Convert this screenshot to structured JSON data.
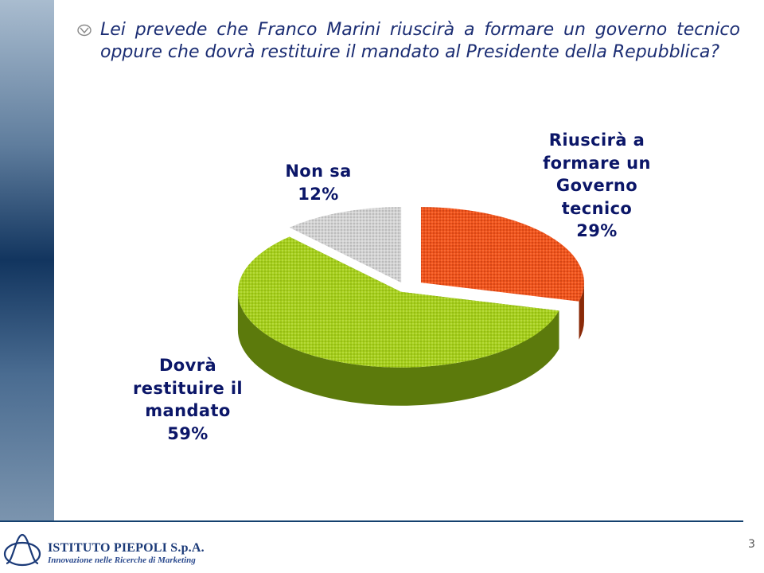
{
  "question": {
    "text": "Lei prevede che Franco Marini riuscirà a formare un governo tecnico oppure che dovrà restituire il mandato al Presidente della Repubblica?"
  },
  "chart_data": {
    "type": "pie",
    "style": "3d-exploded",
    "slices": [
      {
        "label_lines": [
          "Riuscirà a",
          "formare un",
          "Governo",
          "tecnico"
        ],
        "value": 29,
        "value_label": "29%",
        "color": "#f0541c",
        "side_color": "#8a2a08"
      },
      {
        "label_lines": [
          "Dovrà",
          "restituire il",
          "mandato"
        ],
        "value": 59,
        "value_label": "59%",
        "color": "#a6cf1c",
        "side_color": "#5c7a0c"
      },
      {
        "label_lines": [
          "Non sa"
        ],
        "value": 12,
        "value_label": "12%",
        "color": "#d2d2d2",
        "side_color": "#6e6e6e"
      }
    ]
  },
  "footer": {
    "company": "ISTITUTO PIEPOLI  S.p.A.",
    "tagline": "Innovazione nelle Ricerche di Marketing",
    "page_number": "3"
  },
  "colors": {
    "title_text": "#1b2d73",
    "label_text": "#0b1668",
    "side_band": "#12355f",
    "footer_line": "#14406e"
  }
}
